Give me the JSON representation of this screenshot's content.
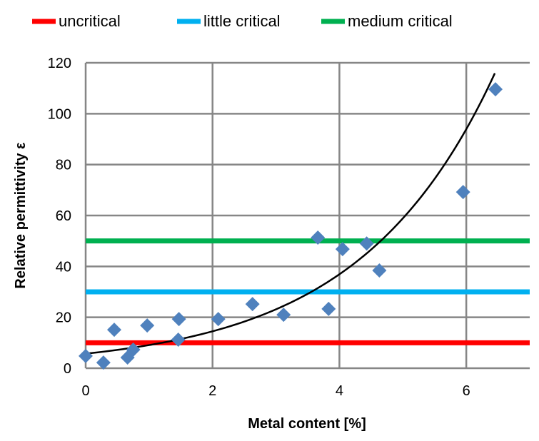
{
  "chart_data": {
    "type": "scatter",
    "title": "",
    "xlabel": "Metal content [%]",
    "ylabel": "Relative permittivity ε",
    "xlim": [
      0,
      7
    ],
    "ylim": [
      0,
      120
    ],
    "xticks": [
      0,
      2,
      4,
      6
    ],
    "yticks": [
      0,
      20,
      40,
      60,
      80,
      100,
      120
    ],
    "grid": true,
    "legend_position": "top",
    "points": {
      "color": "#4f81bd",
      "x": [
        0,
        0.28,
        0.45,
        0.66,
        0.75,
        0.97,
        1.46,
        1.47,
        2.09,
        2.63,
        3.12,
        3.66,
        3.83,
        4.05,
        4.43,
        4.63,
        5.95,
        6.46
      ],
      "y": [
        4.8,
        2.2,
        15.1,
        4.2,
        7.3,
        16.8,
        11.2,
        19.3,
        19.3,
        25.2,
        21.0,
        51.3,
        23.3,
        46.8,
        49.0,
        38.4,
        69.2,
        109.6
      ]
    },
    "trendline": {
      "type": "exponential",
      "a": 5.7,
      "b": 0.467,
      "x_range": [
        0,
        6.45
      ],
      "color": "#000000"
    },
    "thresholds": [
      {
        "name": "uncritical",
        "value": 10,
        "color": "#ff0000"
      },
      {
        "name": "little critical",
        "value": 30,
        "color": "#00b0f0"
      },
      {
        "name": "medium critical",
        "value": 50,
        "color": "#00b050"
      }
    ]
  }
}
